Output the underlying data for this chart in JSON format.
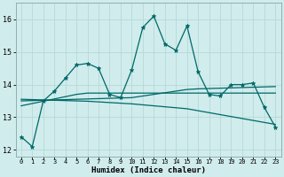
{
  "title": "",
  "xlabel": "Humidex (Indice chaleur)",
  "ylabel": "",
  "bg_color": "#d0ecec",
  "grid_color": "#b8d8d8",
  "line_color": "#006868",
  "x": [
    0,
    1,
    2,
    3,
    4,
    5,
    6,
    7,
    8,
    9,
    10,
    11,
    12,
    13,
    14,
    15,
    16,
    17,
    18,
    19,
    20,
    21,
    22,
    23
  ],
  "series1": [
    12.4,
    12.1,
    13.5,
    13.8,
    14.2,
    14.6,
    14.65,
    14.5,
    13.7,
    13.6,
    14.45,
    15.75,
    16.1,
    15.25,
    15.05,
    15.8,
    14.4,
    13.7,
    13.65,
    14.0,
    14.0,
    14.05,
    13.3,
    12.7
  ],
  "reg1": [
    13.35,
    13.42,
    13.49,
    13.56,
    13.63,
    13.7,
    13.74,
    13.74,
    13.74,
    13.74,
    13.74,
    13.74,
    13.74,
    13.74,
    13.74,
    13.74,
    13.74,
    13.74,
    13.74,
    13.74,
    13.74,
    13.74,
    13.74,
    13.74
  ],
  "reg2": [
    13.5,
    13.51,
    13.52,
    13.53,
    13.54,
    13.55,
    13.56,
    13.57,
    13.58,
    13.59,
    13.6,
    13.65,
    13.7,
    13.75,
    13.8,
    13.85,
    13.87,
    13.88,
    13.89,
    13.9,
    13.91,
    13.92,
    13.93,
    13.94
  ],
  "reg3": [
    13.55,
    13.54,
    13.53,
    13.52,
    13.51,
    13.5,
    13.49,
    13.47,
    13.45,
    13.43,
    13.41,
    13.38,
    13.35,
    13.32,
    13.29,
    13.26,
    13.2,
    13.14,
    13.08,
    13.02,
    12.96,
    12.9,
    12.84,
    12.78
  ],
  "ylim": [
    11.8,
    16.5
  ],
  "yticks": [
    12,
    13,
    14,
    15,
    16
  ],
  "xlim": [
    -0.5,
    23.5
  ],
  "xlabel_fontsize": 6.5,
  "ytick_fontsize": 6,
  "xtick_fontsize": 5
}
